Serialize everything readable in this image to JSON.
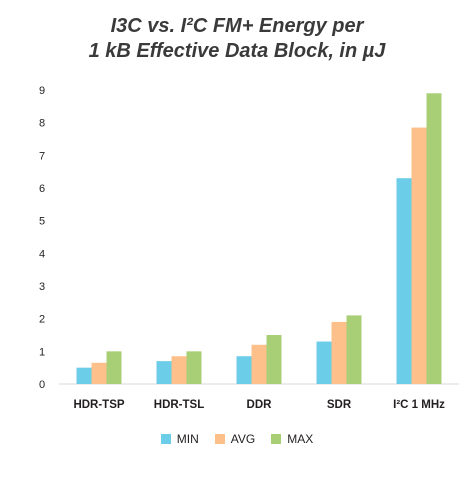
{
  "chart_data": {
    "type": "bar",
    "title_line1": "I3C vs. I²C FM+ Energy per",
    "title_line2": "1 kB Effective Data Block, in µJ",
    "categories": [
      "HDR-TSP",
      "HDR-TSL",
      "DDR",
      "SDR",
      "I²C 1 MHz"
    ],
    "series": [
      {
        "name": "MIN",
        "color": "#6ccde8",
        "values": [
          0.5,
          0.7,
          0.85,
          1.3,
          6.3
        ]
      },
      {
        "name": "AVG",
        "color": "#fdc08a",
        "values": [
          0.65,
          0.85,
          1.2,
          1.9,
          7.85
        ]
      },
      {
        "name": "MAX",
        "color": "#a8cf76",
        "values": [
          1.0,
          1.0,
          1.5,
          2.1,
          8.9
        ]
      }
    ],
    "y_ticks": [
      "0",
      "1",
      "2",
      "3",
      "4",
      "5",
      "6",
      "7",
      "8",
      "9"
    ],
    "ylim": [
      0,
      9
    ],
    "grid": false,
    "legend_position": "bottom"
  }
}
